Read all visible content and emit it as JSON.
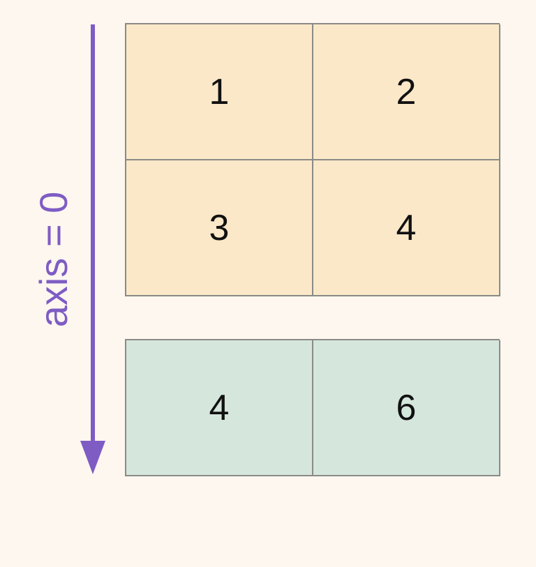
{
  "axis": {
    "label": "axis = 0",
    "color": "#7e5cc4"
  },
  "input_matrix": {
    "rows": [
      [
        "1",
        "2"
      ],
      [
        "3",
        "4"
      ]
    ],
    "fill_color": "#fae8c8"
  },
  "result_matrix": {
    "rows": [
      [
        "4",
        "6"
      ]
    ],
    "fill_color": "#d5e6dc"
  },
  "colors": {
    "background": "#fdf7ef",
    "grid_line": "#8a8a86",
    "text": "#111111"
  }
}
